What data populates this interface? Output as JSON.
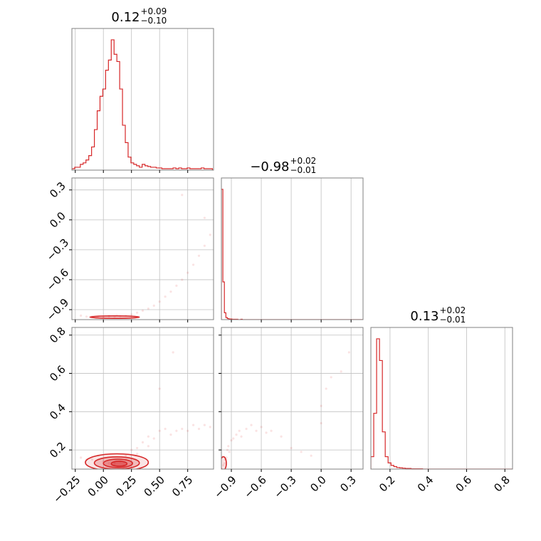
{
  "chart_data": {
    "type": "corner",
    "color": "#d62728",
    "grid": true,
    "parameters": [
      {
        "title": {
          "median": "0.12",
          "plus": "+0.09",
          "minus": "−0.10"
        },
        "range": [
          -0.28,
          0.98
        ],
        "ticks": [
          -0.25,
          0.0,
          0.25,
          0.5,
          0.75
        ],
        "tick_labels": [
          "−0.25",
          "0.00",
          "0.25",
          "0.50",
          "0.75"
        ]
      },
      {
        "title": {
          "median": "−0.98",
          "plus": "+0.02",
          "minus": "−0.01"
        },
        "range": [
          -1.0,
          0.42
        ],
        "ticks": [
          -0.9,
          -0.6,
          -0.3,
          0.0,
          0.3
        ],
        "tick_labels": [
          "−0.9",
          "−0.6",
          "−0.3",
          "0.0",
          "0.3"
        ]
      },
      {
        "title": {
          "median": "0.13",
          "plus": "+0.02",
          "minus": "−0.01"
        },
        "range": [
          0.1,
          0.84
        ],
        "ticks": [
          0.2,
          0.4,
          0.6,
          0.8
        ],
        "tick_labels": [
          "0.2",
          "0.4",
          "0.6",
          "0.8"
        ]
      }
    ],
    "histograms": [
      {
        "bin_start": -0.28,
        "bin_width": 0.025,
        "counts": [
          2,
          4,
          4,
          8,
          10,
          14,
          20,
          32,
          56,
          82,
          102,
          112,
          138,
          152,
          180,
          160,
          150,
          112,
          62,
          38,
          18,
          10,
          8,
          6,
          4,
          8,
          6,
          5,
          4,
          4,
          3,
          3,
          2,
          2,
          2,
          2,
          3,
          2,
          3,
          2,
          2,
          3,
          2,
          2,
          2,
          2,
          3,
          2,
          2,
          2
        ]
      },
      {
        "bin_start": -1.0,
        "bin_width": 0.015,
        "counts": [
          380,
          110,
          20,
          6,
          3,
          2,
          2,
          1,
          1,
          1,
          1,
          0,
          0,
          1,
          0,
          0,
          0,
          0,
          0,
          0,
          0,
          0,
          0,
          0,
          0,
          0,
          0,
          0,
          0,
          0,
          0,
          0,
          0,
          0,
          0,
          0,
          0,
          0,
          0,
          0,
          0,
          0,
          0,
          0,
          0,
          0,
          0,
          0,
          0,
          0,
          0,
          0,
          0,
          0,
          0,
          0,
          0,
          0,
          0,
          0,
          0,
          0,
          0,
          0,
          0,
          0,
          0,
          0,
          0,
          0,
          0,
          0,
          0,
          0,
          0,
          0,
          0,
          0,
          0,
          0,
          0,
          0,
          0,
          0,
          0,
          0,
          0,
          0,
          0,
          0,
          0,
          0,
          0,
          0,
          0
        ]
      },
      {
        "bin_start": 0.1,
        "bin_width": 0.015,
        "counts": [
          40,
          180,
          420,
          350,
          120,
          40,
          20,
          12,
          8,
          5,
          4,
          3,
          2,
          2,
          1,
          1,
          1,
          1,
          0,
          0,
          0,
          0,
          0,
          0,
          0,
          0,
          0,
          0,
          0,
          0,
          0,
          0,
          0,
          0,
          0,
          0,
          0,
          0,
          0,
          0,
          0,
          0,
          0,
          0,
          0,
          0,
          0,
          0,
          0,
          0
        ]
      }
    ],
    "scatter": {
      "p1_vs_p0": [
        [
          -0.2,
          -0.96
        ],
        [
          -0.15,
          -0.97
        ],
        [
          -0.1,
          -0.97
        ],
        [
          -0.05,
          -0.975
        ],
        [
          0.0,
          -0.975
        ],
        [
          0.05,
          -0.97
        ],
        [
          0.1,
          -0.97
        ],
        [
          0.15,
          -0.965
        ],
        [
          0.2,
          -0.96
        ],
        [
          0.25,
          -0.95
        ],
        [
          0.3,
          -0.93
        ],
        [
          0.35,
          -0.91
        ],
        [
          0.4,
          -0.89
        ],
        [
          0.45,
          -0.86
        ],
        [
          0.5,
          -0.82
        ],
        [
          0.55,
          -0.77
        ],
        [
          0.6,
          -0.72
        ],
        [
          0.65,
          -0.66
        ],
        [
          0.7,
          -0.6
        ],
        [
          0.75,
          -0.53
        ],
        [
          0.8,
          -0.45
        ],
        [
          0.85,
          -0.36
        ],
        [
          0.9,
          -0.26
        ],
        [
          0.95,
          -0.15
        ],
        [
          0.7,
          0.25
        ],
        [
          0.9,
          0.02
        ],
        [
          0.05,
          -0.96
        ],
        [
          0.12,
          -0.955
        ]
      ],
      "p2_vs_p0": [
        [
          -0.2,
          0.16
        ],
        [
          -0.15,
          0.15
        ],
        [
          -0.1,
          0.15
        ],
        [
          0.0,
          0.14
        ],
        [
          0.05,
          0.13
        ],
        [
          0.1,
          0.13
        ],
        [
          0.15,
          0.14
        ],
        [
          0.2,
          0.15
        ],
        [
          0.25,
          0.2
        ],
        [
          0.3,
          0.21
        ],
        [
          0.35,
          0.24
        ],
        [
          0.4,
          0.27
        ],
        [
          0.45,
          0.26
        ],
        [
          0.5,
          0.3
        ],
        [
          0.55,
          0.31
        ],
        [
          0.6,
          0.28
        ],
        [
          0.65,
          0.3
        ],
        [
          0.7,
          0.31
        ],
        [
          0.75,
          0.3
        ],
        [
          0.8,
          0.33
        ],
        [
          0.85,
          0.31
        ],
        [
          0.9,
          0.33
        ],
        [
          0.95,
          0.32
        ],
        [
          0.5,
          0.52
        ],
        [
          0.62,
          0.71
        ],
        [
          0.3,
          0.18
        ],
        [
          0.2,
          0.17
        ],
        [
          0.4,
          0.22
        ]
      ],
      "p2_vs_p1": [
        [
          -0.98,
          0.12
        ],
        [
          -0.97,
          0.13
        ],
        [
          -0.96,
          0.15
        ],
        [
          -0.95,
          0.16
        ],
        [
          -0.94,
          0.2
        ],
        [
          -0.93,
          0.22
        ],
        [
          -0.92,
          0.19
        ],
        [
          -0.9,
          0.25
        ],
        [
          -0.88,
          0.26
        ],
        [
          -0.85,
          0.28
        ],
        [
          -0.82,
          0.3
        ],
        [
          -0.8,
          0.27
        ],
        [
          -0.75,
          0.31
        ],
        [
          -0.7,
          0.33
        ],
        [
          -0.65,
          0.3
        ],
        [
          -0.6,
          0.32
        ],
        [
          -0.55,
          0.29
        ],
        [
          -0.5,
          0.3
        ],
        [
          -0.4,
          0.27
        ],
        [
          -0.3,
          0.21
        ],
        [
          -0.2,
          0.19
        ],
        [
          0.0,
          0.34
        ],
        [
          0.0,
          0.43
        ],
        [
          0.05,
          0.52
        ],
        [
          0.1,
          0.58
        ],
        [
          0.2,
          0.61
        ],
        [
          0.28,
          0.71
        ],
        [
          -0.1,
          0.17
        ]
      ]
    },
    "contours_p2_vs_p0": [
      {
        "cx": 0.12,
        "cy": 0.135,
        "rx": 0.28,
        "ry": 0.045
      },
      {
        "cx": 0.12,
        "cy": 0.132,
        "rx": 0.2,
        "ry": 0.032
      },
      {
        "cx": 0.13,
        "cy": 0.13,
        "rx": 0.13,
        "ry": 0.022
      },
      {
        "cx": 0.14,
        "cy": 0.128,
        "rx": 0.07,
        "ry": 0.013
      }
    ],
    "contours_p1_vs_p0": [
      {
        "cx": 0.1,
        "cy": -0.975,
        "rx": 0.22,
        "ry": 0.012
      }
    ],
    "contours_p2_vs_p1": [
      {
        "cx": -0.98,
        "cy": 0.13,
        "rx": 0.03,
        "ry": 0.035
      }
    ]
  }
}
